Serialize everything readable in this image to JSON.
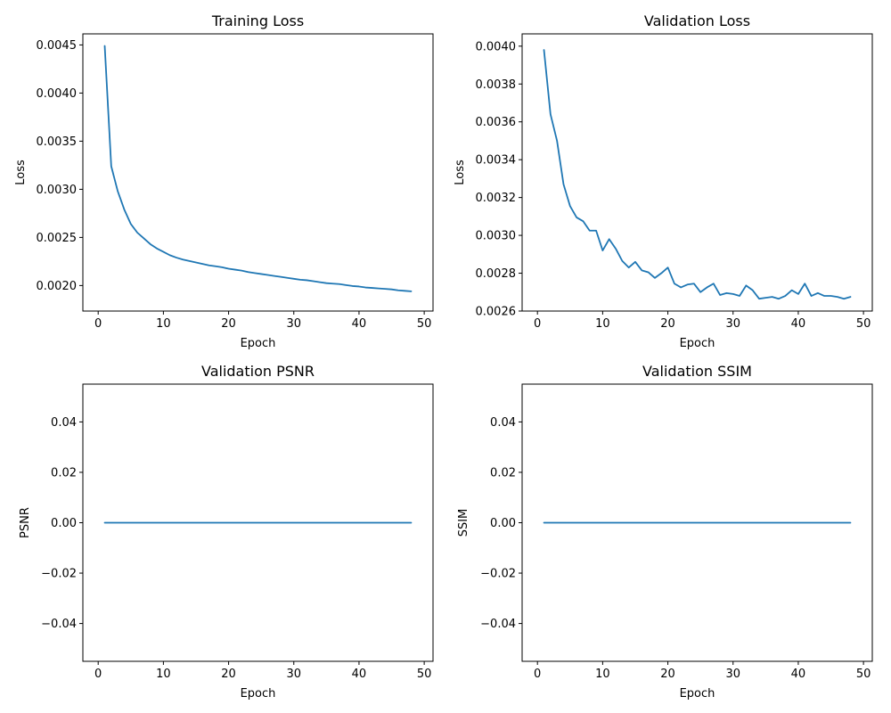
{
  "colors": {
    "series": "#1f77b4",
    "axes": "#000000",
    "background": "#ffffff"
  },
  "chart_data": [
    {
      "type": "line",
      "title": "Training Loss",
      "xlabel": "Epoch",
      "ylabel": "Loss",
      "xlim": [
        -2.35,
        51.35
      ],
      "ylim": [
        0.001735,
        0.004615
      ],
      "xticks": [
        0,
        10,
        20,
        30,
        40,
        50
      ],
      "xtick_labels": [
        "0",
        "10",
        "20",
        "30",
        "40",
        "50"
      ],
      "yticks": [
        0.002,
        0.0025,
        0.003,
        0.0035,
        0.004,
        0.0045
      ],
      "ytick_labels": [
        "0.0020",
        "0.0025",
        "0.0030",
        "0.0035",
        "0.0040",
        "0.0045"
      ],
      "grid": false,
      "series": [
        {
          "x": [
            1,
            2,
            3,
            4,
            5,
            6,
            7,
            8,
            9,
            10,
            11,
            12,
            13,
            14,
            15,
            16,
            17,
            18,
            19,
            20,
            21,
            22,
            23,
            24,
            25,
            26,
            27,
            28,
            29,
            30,
            31,
            32,
            33,
            34,
            35,
            36,
            37,
            38,
            39,
            40,
            41,
            42,
            43,
            44,
            45,
            46,
            47,
            48
          ],
          "values": [
            0.00449,
            0.00324,
            0.00298,
            0.00279,
            0.00264,
            0.00255,
            0.00249,
            0.00243,
            0.002385,
            0.00235,
            0.002315,
            0.00229,
            0.00227,
            0.002255,
            0.00224,
            0.002225,
            0.00221,
            0.0022,
            0.00219,
            0.002175,
            0.002165,
            0.002155,
            0.00214,
            0.00213,
            0.00212,
            0.00211,
            0.0021,
            0.00209,
            0.00208,
            0.00207,
            0.00206,
            0.002055,
            0.002045,
            0.002035,
            0.002025,
            0.00202,
            0.002015,
            0.002005,
            0.001995,
            0.00199,
            0.00198,
            0.001975,
            0.00197,
            0.001965,
            0.00196,
            0.00195,
            0.001945,
            0.00194
          ]
        }
      ]
    },
    {
      "type": "line",
      "title": "Validation Loss",
      "xlabel": "Epoch",
      "ylabel": "Loss",
      "xlim": [
        -2.35,
        51.35
      ],
      "ylim": [
        0.0026,
        0.004065
      ],
      "xticks": [
        0,
        10,
        20,
        30,
        40,
        50
      ],
      "xtick_labels": [
        "0",
        "10",
        "20",
        "30",
        "40",
        "50"
      ],
      "yticks": [
        0.0026,
        0.0028,
        0.003,
        0.0032,
        0.0034,
        0.0036,
        0.0038,
        0.004
      ],
      "ytick_labels": [
        "0.0026",
        "0.0028",
        "0.0030",
        "0.0032",
        "0.0034",
        "0.0036",
        "0.0038",
        "0.0040"
      ],
      "grid": false,
      "series": [
        {
          "x": [
            1,
            2,
            3,
            4,
            5,
            6,
            7,
            8,
            9,
            10,
            11,
            12,
            13,
            14,
            15,
            16,
            17,
            18,
            19,
            20,
            21,
            22,
            23,
            24,
            25,
            26,
            27,
            28,
            29,
            30,
            31,
            32,
            33,
            34,
            35,
            36,
            37,
            38,
            39,
            40,
            41,
            42,
            43,
            44,
            45,
            46,
            47,
            48
          ],
          "values": [
            0.00398,
            0.00364,
            0.0035,
            0.00327,
            0.003155,
            0.003095,
            0.003075,
            0.003025,
            0.003025,
            0.00292,
            0.00298,
            0.00293,
            0.002865,
            0.00283,
            0.00286,
            0.002815,
            0.002805,
            0.002775,
            0.0028,
            0.00283,
            0.002745,
            0.002725,
            0.00274,
            0.002745,
            0.0027,
            0.002725,
            0.002745,
            0.002685,
            0.002695,
            0.00269,
            0.00268,
            0.002735,
            0.00271,
            0.002665,
            0.00267,
            0.002675,
            0.002665,
            0.00268,
            0.00271,
            0.00269,
            0.002745,
            0.00268,
            0.002695,
            0.00268,
            0.00268,
            0.002675,
            0.002665,
            0.002675
          ]
        }
      ]
    },
    {
      "type": "line",
      "title": "Validation PSNR",
      "xlabel": "Epoch",
      "ylabel": "PSNR",
      "xlim": [
        -2.35,
        51.35
      ],
      "ylim": [
        -0.055,
        0.055
      ],
      "xticks": [
        0,
        10,
        20,
        30,
        40,
        50
      ],
      "xtick_labels": [
        "0",
        "10",
        "20",
        "30",
        "40",
        "50"
      ],
      "yticks": [
        -0.04,
        -0.02,
        0,
        0.02,
        0.04
      ],
      "ytick_labels": [
        "−0.04",
        "−0.02",
        "0.00",
        "0.02",
        "0.04"
      ],
      "grid": false,
      "series": [
        {
          "x": [
            1,
            2,
            3,
            4,
            5,
            6,
            7,
            8,
            9,
            10,
            11,
            12,
            13,
            14,
            15,
            16,
            17,
            18,
            19,
            20,
            21,
            22,
            23,
            24,
            25,
            26,
            27,
            28,
            29,
            30,
            31,
            32,
            33,
            34,
            35,
            36,
            37,
            38,
            39,
            40,
            41,
            42,
            43,
            44,
            45,
            46,
            47,
            48
          ],
          "values": [
            0,
            0,
            0,
            0,
            0,
            0,
            0,
            0,
            0,
            0,
            0,
            0,
            0,
            0,
            0,
            0,
            0,
            0,
            0,
            0,
            0,
            0,
            0,
            0,
            0,
            0,
            0,
            0,
            0,
            0,
            0,
            0,
            0,
            0,
            0,
            0,
            0,
            0,
            0,
            0,
            0,
            0,
            0,
            0,
            0,
            0,
            0,
            0
          ]
        }
      ]
    },
    {
      "type": "line",
      "title": "Validation SSIM",
      "xlabel": "Epoch",
      "ylabel": "SSIM",
      "xlim": [
        -2.35,
        51.35
      ],
      "ylim": [
        -0.055,
        0.055
      ],
      "xticks": [
        0,
        10,
        20,
        30,
        40,
        50
      ],
      "xtick_labels": [
        "0",
        "10",
        "20",
        "30",
        "40",
        "50"
      ],
      "yticks": [
        -0.04,
        -0.02,
        0,
        0.02,
        0.04
      ],
      "ytick_labels": [
        "−0.04",
        "−0.02",
        "0.00",
        "0.02",
        "0.04"
      ],
      "grid": false,
      "series": [
        {
          "x": [
            1,
            2,
            3,
            4,
            5,
            6,
            7,
            8,
            9,
            10,
            11,
            12,
            13,
            14,
            15,
            16,
            17,
            18,
            19,
            20,
            21,
            22,
            23,
            24,
            25,
            26,
            27,
            28,
            29,
            30,
            31,
            32,
            33,
            34,
            35,
            36,
            37,
            38,
            39,
            40,
            41,
            42,
            43,
            44,
            45,
            46,
            47,
            48
          ],
          "values": [
            0,
            0,
            0,
            0,
            0,
            0,
            0,
            0,
            0,
            0,
            0,
            0,
            0,
            0,
            0,
            0,
            0,
            0,
            0,
            0,
            0,
            0,
            0,
            0,
            0,
            0,
            0,
            0,
            0,
            0,
            0,
            0,
            0,
            0,
            0,
            0,
            0,
            0,
            0,
            0,
            0,
            0,
            0,
            0,
            0,
            0,
            0,
            0
          ]
        }
      ]
    }
  ]
}
